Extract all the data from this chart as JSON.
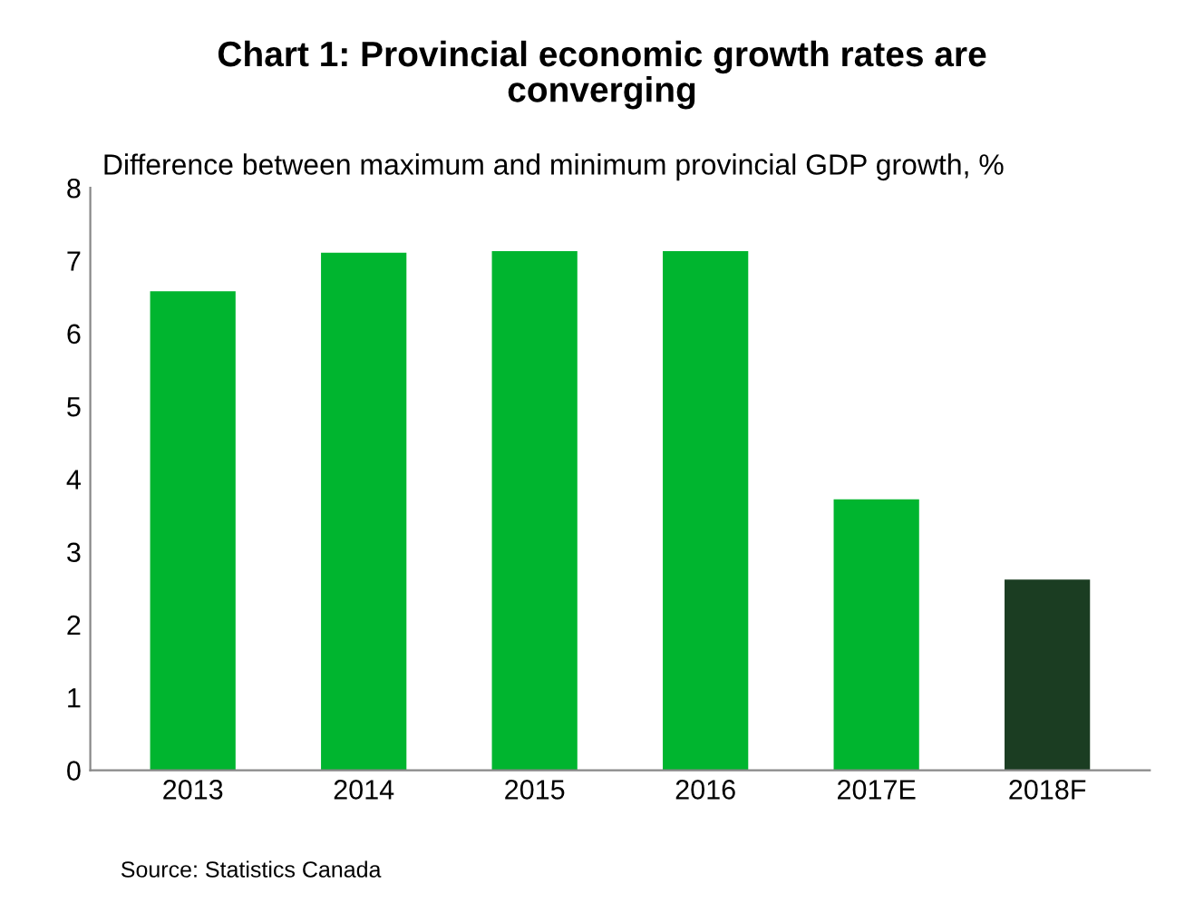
{
  "chart_data": {
    "type": "bar",
    "title": "Chart 1: Provincial economic growth rates are\nconverging",
    "ylabel": "Difference between maximum and minimum provincial GDP growth, %",
    "categories": [
      "2013",
      "2014",
      "2015",
      "2016",
      "2017E",
      "2018F"
    ],
    "values": [
      6.58,
      7.11,
      7.13,
      7.13,
      3.72,
      2.62
    ],
    "colors": [
      "#00b52f",
      "#00b52f",
      "#00b52f",
      "#00b52f",
      "#00b52f",
      "#1b3d22"
    ],
    "ylim": [
      0,
      8
    ],
    "yticks": [
      0,
      1,
      2,
      3,
      4,
      5,
      6,
      7,
      8
    ],
    "grid": false,
    "annotations": [
      "Source: Statistics Canada"
    ]
  }
}
